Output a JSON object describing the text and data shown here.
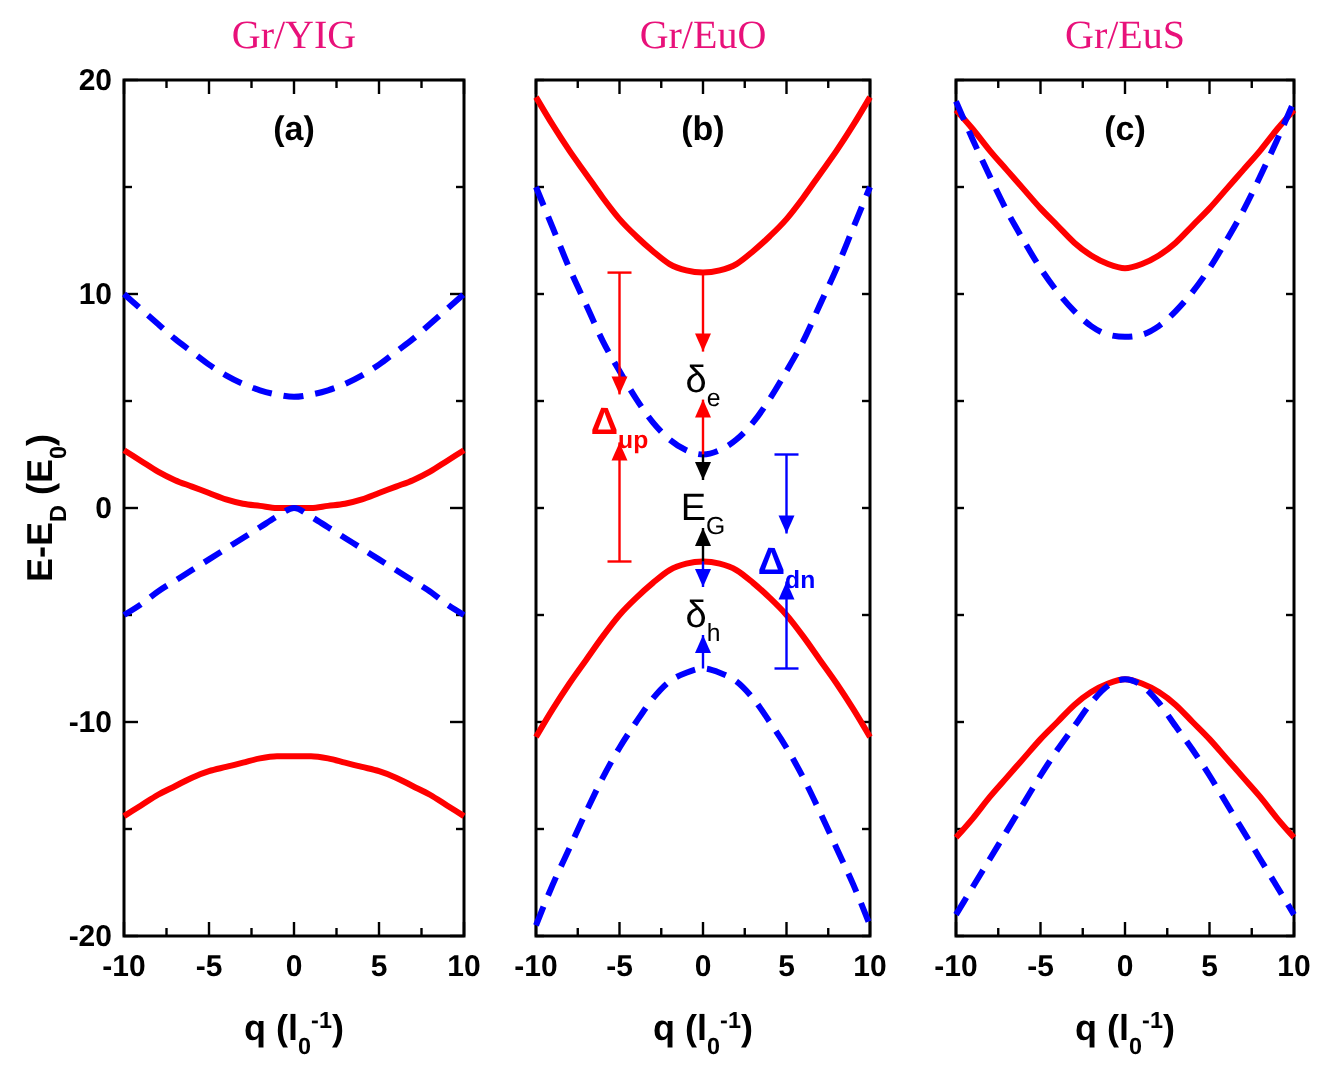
{
  "chart_data": [
    {
      "type": "line",
      "title": "Gr/YIG",
      "xlabel": "q (l$_{0}$$^{-1}$)",
      "ylabel": "E-E$_{D}$ (E$_{0}$)",
      "xlim": [
        -10,
        10
      ],
      "ylim": [
        -20,
        20
      ],
      "xticks": [
        -10,
        {
          "value": -7.5,
          "label": null
        },
        -5,
        {
          "value": -2.5,
          "label": null
        },
        0,
        {
          "value": 2.5,
          "label": null
        },
        5,
        {
          "value": 7.5,
          "label": null
        },
        10
      ],
      "yticks": [
        -20,
        {
          "value": -15,
          "label": null
        },
        -10,
        {
          "value": -5,
          "label": null
        },
        0,
        {
          "value": 5,
          "label": null
        },
        10,
        {
          "value": 15,
          "label": null
        },
        20
      ],
      "x": [
        -10,
        -9,
        -8,
        -7,
        -6,
        -5,
        -4,
        -3,
        -2,
        -1,
        0,
        1,
        2,
        3,
        4,
        5,
        6,
        7,
        8,
        9,
        10
      ],
      "annotations": [
        "(a)"
      ],
      "series": [
        {
          "color": "#0000ff",
          "line_style": "dashed",
          "values": [
            10,
            9.3,
            8.6,
            7.9,
            7.3,
            6.7,
            6.2,
            5.8,
            5.5,
            5.3,
            5.2,
            5.3,
            5.5,
            5.8,
            6.2,
            6.7,
            7.3,
            7.9,
            8.6,
            9.3,
            10
          ]
        },
        {
          "color": "#ff0000",
          "line_style": "solid",
          "values": [
            2.7,
            2.2,
            1.7,
            1.3,
            1,
            0.7,
            0.4,
            0.2,
            0.1,
            0,
            0,
            0,
            0.1,
            0.2,
            0.4,
            0.7,
            1,
            1.3,
            1.7,
            2.2,
            2.7
          ]
        },
        {
          "color": "#0000ff",
          "line_style": "dashed",
          "values": [
            -5,
            -4.5,
            -3.9,
            -3.4,
            -2.9,
            -2.4,
            -1.9,
            -1.4,
            -0.9,
            -0.4,
            0,
            -0.4,
            -0.9,
            -1.4,
            -1.9,
            -2.4,
            -2.9,
            -3.4,
            -3.9,
            -4.5,
            -5
          ]
        },
        {
          "color": "#ff0000",
          "line_style": "solid",
          "values": [
            -14.4,
            -13.9,
            -13.4,
            -13,
            -12.6,
            -12.3,
            -12.1,
            -11.9,
            -11.7,
            -11.6,
            -11.6,
            -11.6,
            -11.7,
            -11.9,
            -12.1,
            -12.3,
            -12.6,
            -13,
            -13.4,
            -13.9,
            -14.4
          ]
        }
      ]
    },
    {
      "type": "line",
      "title": "Gr/EuO",
      "xlabel": "q (l$_{0}$$^{-1}$)",
      "xlim": [
        -10,
        10
      ],
      "ylim": [
        -20,
        20
      ],
      "tick_labels": "x",
      "xticks": [
        -10,
        {
          "value": -7.5,
          "label": null
        },
        -5,
        {
          "value": -2.5,
          "label": null
        },
        0,
        {
          "value": 2.5,
          "label": null
        },
        5,
        {
          "value": 7.5,
          "label": null
        },
        10
      ],
      "yticks": [
        {
          "value": -20,
          "label": null
        },
        {
          "value": -15,
          "label": null
        },
        {
          "value": -10,
          "label": null
        },
        {
          "value": -5,
          "label": null
        },
        {
          "value": 0,
          "label": null
        },
        {
          "value": 5,
          "label": null
        },
        {
          "value": 10,
          "label": null
        },
        {
          "value": 15,
          "label": null
        },
        {
          "value": 20,
          "label": null
        }
      ],
      "x": [
        -10,
        -9,
        -8,
        -7,
        -6,
        -5,
        -4,
        -3,
        -2,
        -1,
        0,
        1,
        2,
        3,
        4,
        5,
        6,
        7,
        8,
        9,
        10
      ],
      "annotations": [
        "(b)",
        "Δ$_{up}$",
        {
          "text": "δ$_{e}$",
          "x": 0,
          "y": 11
        },
        "E$_{G}$",
        "δ$_{h}$",
        "Δ$_{dn}$"
      ],
      "series": [
        {
          "color": "#ff0000",
          "line_style": "solid",
          "values": [
            19.2,
            17.9,
            16.7,
            15.6,
            14.5,
            13.5,
            12.7,
            12,
            11.4,
            11.1,
            11,
            11.1,
            11.4,
            12,
            12.7,
            13.5,
            14.5,
            15.6,
            16.7,
            17.9,
            19.2
          ]
        },
        {
          "color": "#0000ff",
          "line_style": "dashed",
          "values": [
            15,
            13.1,
            11.2,
            9.5,
            7.8,
            6.4,
            5.1,
            4,
            3.2,
            2.7,
            2.5,
            2.7,
            3.2,
            4,
            5.1,
            6.4,
            7.8,
            9.5,
            11.2,
            13.1,
            15
          ]
        },
        {
          "color": "#ff0000",
          "line_style": "solid",
          "values": [
            -10.7,
            -9.4,
            -8.2,
            -7.1,
            -6,
            -5,
            -4.2,
            -3.5,
            -2.9,
            -2.6,
            -2.5,
            -2.6,
            -2.9,
            -3.5,
            -4.2,
            -5,
            -6,
            -7.1,
            -8.2,
            -9.4,
            -10.7
          ]
        },
        {
          "color": "#0000ff",
          "line_style": "dashed",
          "values": [
            -19.5,
            -17.6,
            -15.9,
            -14.2,
            -12.6,
            -11.2,
            -10,
            -8.9,
            -8.1,
            -7.7,
            -7.5,
            -7.7,
            -8.1,
            -8.9,
            -10,
            -11.2,
            -12.6,
            -14.2,
            -15.9,
            -17.6,
            -19.5
          ]
        }
      ]
    },
    {
      "type": "line",
      "title": "Gr/EuS",
      "xlabel": "q (l$_{0}$$^{-1}$)",
      "xlim": [
        -10,
        10
      ],
      "ylim": [
        -20,
        20
      ],
      "tick_labels": "x",
      "xticks": [
        -10,
        {
          "value": -7.5,
          "label": null
        },
        -5,
        {
          "value": -2.5,
          "label": null
        },
        0,
        {
          "value": 2.5,
          "label": null
        },
        5,
        {
          "value": 7.5,
          "label": null
        },
        10
      ],
      "yticks": [
        {
          "value": -20,
          "label": null
        },
        {
          "value": -15,
          "label": null
        },
        {
          "value": -10,
          "label": null
        },
        {
          "value": -5,
          "label": null
        },
        {
          "value": 0,
          "label": null
        },
        {
          "value": 5,
          "label": null
        },
        {
          "value": 10,
          "label": null
        },
        {
          "value": 15,
          "label": null
        },
        {
          "value": 20,
          "label": null
        }
      ],
      "x": [
        -10,
        -9,
        -8,
        -7,
        -6,
        -5,
        -4,
        -3,
        -2,
        -1,
        0,
        1,
        2,
        3,
        4,
        5,
        6,
        7,
        8,
        9,
        10
      ],
      "annotations": [
        "(c)"
      ],
      "series": [
        {
          "color": "#ff0000",
          "line_style": "solid",
          "values": [
            18.6,
            17.7,
            16.7,
            15.8,
            14.9,
            14,
            13.2,
            12.4,
            11.8,
            11.4,
            11.2,
            11.4,
            11.8,
            12.4,
            13.2,
            14,
            14.9,
            15.8,
            16.7,
            17.7,
            18.6
          ]
        },
        {
          "color": "#0000ff",
          "line_style": "dashed",
          "values": [
            19,
            17.2,
            15.5,
            13.9,
            12.5,
            11.2,
            10.1,
            9.2,
            8.5,
            8.1,
            8,
            8.1,
            8.5,
            9.2,
            10.1,
            11.2,
            12.5,
            13.9,
            15.5,
            17.2,
            19
          ]
        },
        {
          "color": "#ff0000",
          "line_style": "solid",
          "values": [
            -15.4,
            -14.5,
            -13.5,
            -12.6,
            -11.7,
            -10.8,
            -10,
            -9.2,
            -8.6,
            -8.2,
            -8,
            -8.2,
            -8.6,
            -9.2,
            -10,
            -10.8,
            -11.7,
            -12.6,
            -13.5,
            -14.5,
            -15.4
          ]
        },
        {
          "color": "#0000ff",
          "line_style": "dashed",
          "values": [
            -19,
            -17.7,
            -16.4,
            -15.1,
            -13.8,
            -12.5,
            -11.3,
            -10.2,
            -9.1,
            -8.3,
            -8,
            -8.3,
            -9.1,
            -10.2,
            -11.3,
            -12.5,
            -13.8,
            -15.1,
            -16.4,
            -17.7,
            -19
          ]
        }
      ]
    }
  ]
}
